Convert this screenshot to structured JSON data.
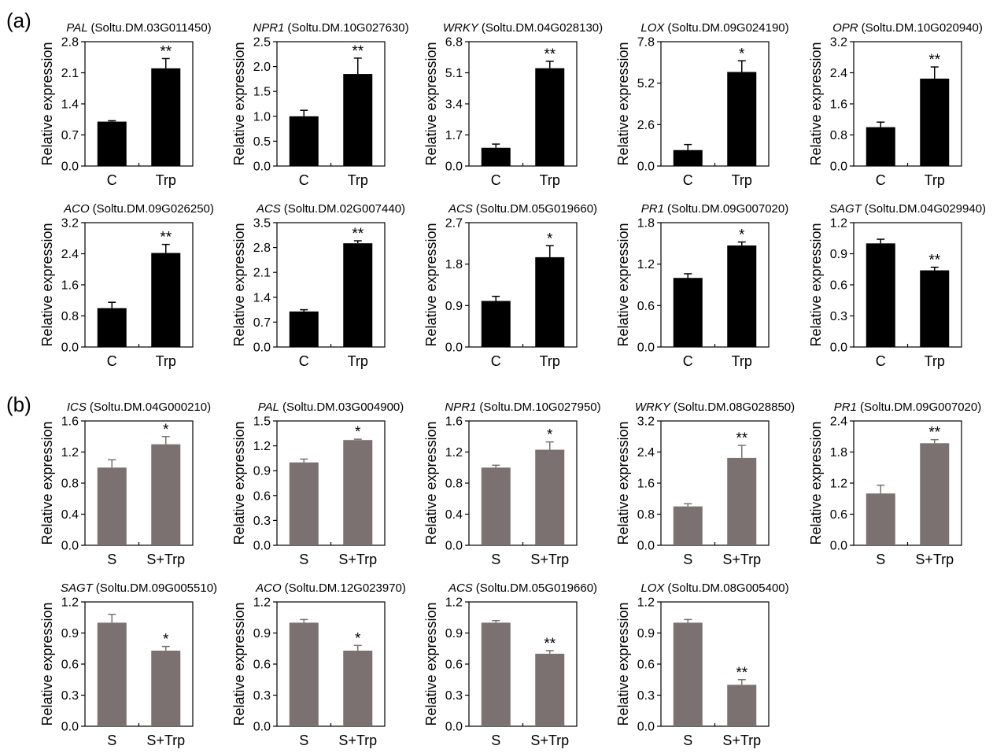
{
  "figure": {
    "panel_labels": [
      "(a)",
      "(b)"
    ],
    "colors": {
      "a": "#000000",
      "b": "#7a7170",
      "axis": "#000000"
    }
  },
  "chart_data": [
    {
      "type": "bar",
      "panel": "(a)",
      "gene": "PAL",
      "gene_id": "(Soltu.DM.03G011450)",
      "title": "PAL (Soltu.DM.03G011450)",
      "ylabel": "Relative expression",
      "categories": [
        "C",
        "Trp"
      ],
      "values": [
        1.0,
        2.2
      ],
      "errors": [
        0.02,
        0.22
      ],
      "significance": [
        "",
        "**"
      ],
      "ylim": [
        0,
        2.8
      ],
      "yticks": [
        "0.0",
        "0.7",
        "1.4",
        "2.1",
        "2.8"
      ]
    },
    {
      "type": "bar",
      "panel": "(a)",
      "gene": "NPR1",
      "gene_id": "(Soltu.DM.10G027630)",
      "title": "NPR1 (Soltu.DM.10G027630)",
      "ylabel": "Relative expression",
      "categories": [
        "C",
        "Trp"
      ],
      "values": [
        1.0,
        1.85
      ],
      "errors": [
        0.12,
        0.32
      ],
      "significance": [
        "",
        "**"
      ],
      "ylim": [
        0,
        2.5
      ],
      "yticks": [
        "0.0",
        "0.5",
        "1.0",
        "1.5",
        "2.0",
        "2.5"
      ]
    },
    {
      "type": "bar",
      "panel": "(a)",
      "gene": "WRKY",
      "gene_id": "(Soltu.DM.04G028130)",
      "title": "WRKY (Soltu.DM.04G028130)",
      "ylabel": "Relative expression",
      "categories": [
        "C",
        "Trp"
      ],
      "values": [
        1.0,
        5.35
      ],
      "errors": [
        0.2,
        0.38
      ],
      "significance": [
        "",
        "**"
      ],
      "ylim": [
        0,
        6.8
      ],
      "yticks": [
        "0.0",
        "1.7",
        "3.4",
        "5.1",
        "6.8"
      ]
    },
    {
      "type": "bar",
      "panel": "(a)",
      "gene": "LOX",
      "gene_id": "(Soltu.DM.09G024190)",
      "title": "LOX (Soltu.DM.09G024190)",
      "ylabel": "Relative expression",
      "categories": [
        "C",
        "Trp"
      ],
      "values": [
        1.0,
        5.9
      ],
      "errors": [
        0.35,
        0.7
      ],
      "significance": [
        "",
        "*"
      ],
      "ylim": [
        0,
        7.8
      ],
      "yticks": [
        "0.0",
        "2.6",
        "5.2",
        "7.8"
      ]
    },
    {
      "type": "bar",
      "panel": "(a)",
      "gene": "OPR",
      "gene_id": "(Soltu.DM.10G020940)",
      "title": "OPR (Soltu.DM.10G020940)",
      "ylabel": "Relative expression",
      "categories": [
        "C",
        "Trp"
      ],
      "values": [
        1.0,
        2.25
      ],
      "errors": [
        0.13,
        0.3
      ],
      "significance": [
        "",
        "**"
      ],
      "ylim": [
        0,
        3.2
      ],
      "yticks": [
        "0.0",
        "0.8",
        "1.6",
        "2.4",
        "3.2"
      ]
    },
    {
      "type": "bar",
      "panel": "(a)",
      "gene": "ACO",
      "gene_id": "(Soltu.DM.09G026250)",
      "title": "ACO (Soltu.DM.09G026250)",
      "ylabel": "Relative expression",
      "categories": [
        "C",
        "Trp"
      ],
      "values": [
        1.0,
        2.42
      ],
      "errors": [
        0.15,
        0.22
      ],
      "significance": [
        "",
        "**"
      ],
      "ylim": [
        0,
        3.2
      ],
      "yticks": [
        "0.0",
        "0.8",
        "1.6",
        "2.4",
        "3.2"
      ]
    },
    {
      "type": "bar",
      "panel": "(a)",
      "gene": "ACS",
      "gene_id": "(Soltu.DM.02G007440)",
      "title": "ACS (Soltu.DM.02G007440)",
      "ylabel": "Relative expression",
      "categories": [
        "C",
        "Trp"
      ],
      "values": [
        1.0,
        2.92
      ],
      "errors": [
        0.05,
        0.07
      ],
      "significance": [
        "",
        "**"
      ],
      "ylim": [
        0,
        3.5
      ],
      "yticks": [
        "0.0",
        "0.7",
        "1.4",
        "2.1",
        "2.8",
        "3.5"
      ]
    },
    {
      "type": "bar",
      "panel": "(a)",
      "gene": "ACS",
      "gene_id": "(Soltu.DM.05G019660)",
      "title": "ACS (Soltu.DM.05G019660)",
      "ylabel": "Relative expression",
      "categories": [
        "C",
        "Trp"
      ],
      "values": [
        1.0,
        1.95
      ],
      "errors": [
        0.1,
        0.25
      ],
      "significance": [
        "",
        "*"
      ],
      "ylim": [
        0,
        2.7
      ],
      "yticks": [
        "0.0",
        "0.9",
        "1.8",
        "2.7"
      ]
    },
    {
      "type": "bar",
      "panel": "(a)",
      "gene": "PR1",
      "gene_id": "(Soltu.DM.09G007020)",
      "title": "PR1 (Soltu.DM.09G007020)",
      "ylabel": "Relative expression",
      "categories": [
        "C",
        "Trp"
      ],
      "values": [
        1.0,
        1.47
      ],
      "errors": [
        0.06,
        0.05
      ],
      "significance": [
        "",
        "*"
      ],
      "ylim": [
        0,
        1.8
      ],
      "yticks": [
        "0.0",
        "0.6",
        "1.2",
        "1.8"
      ]
    },
    {
      "type": "bar",
      "panel": "(a)",
      "gene": "SAGT",
      "gene_id": "(Soltu.DM.04G029940)",
      "title": "SAGT (Soltu.DM.04G029940)",
      "ylabel": "Relative expression",
      "categories": [
        "C",
        "Trp"
      ],
      "values": [
        1.0,
        0.74
      ],
      "errors": [
        0.04,
        0.03
      ],
      "significance": [
        "",
        "**"
      ],
      "ylim": [
        0,
        1.2
      ],
      "yticks": [
        "0.0",
        "0.3",
        "0.6",
        "0.9",
        "1.2"
      ]
    },
    {
      "type": "bar",
      "panel": "(b)",
      "gene": "ICS",
      "gene_id": "(Soltu.DM.04G000210)",
      "title": "ICS (Soltu.DM.04G000210)",
      "ylabel": "Relative expression",
      "categories": [
        "S",
        "S+Trp"
      ],
      "values": [
        1.0,
        1.3
      ],
      "errors": [
        0.1,
        0.1
      ],
      "significance": [
        "",
        "*"
      ],
      "ylim": [
        0,
        1.6
      ],
      "yticks": [
        "0.0",
        "0.4",
        "0.8",
        "1.2",
        "1.6"
      ]
    },
    {
      "type": "bar",
      "panel": "(b)",
      "gene": "PAL",
      "gene_id": "(Soltu.DM.03G004900)",
      "title": "PAL (Soltu.DM.03G004900)",
      "ylabel": "Relative expression",
      "categories": [
        "S",
        "S+Trp"
      ],
      "values": [
        1.0,
        1.27
      ],
      "errors": [
        0.04,
        0.01
      ],
      "significance": [
        "",
        "*"
      ],
      "ylim": [
        0,
        1.5
      ],
      "yticks": [
        "0.0",
        "0.3",
        "0.6",
        "0.9",
        "1.2",
        "1.5"
      ]
    },
    {
      "type": "bar",
      "panel": "(b)",
      "gene": "NPR1",
      "gene_id": "(Soltu.DM.10G027950)",
      "title": "NPR1 (Soltu.DM.10G027950)",
      "ylabel": "Relative expression",
      "categories": [
        "S",
        "S+Trp"
      ],
      "values": [
        1.0,
        1.23
      ],
      "errors": [
        0.03,
        0.1
      ],
      "significance": [
        "",
        "*"
      ],
      "ylim": [
        0,
        1.6
      ],
      "yticks": [
        "0.0",
        "0.4",
        "0.8",
        "1.2",
        "1.6"
      ]
    },
    {
      "type": "bar",
      "panel": "(b)",
      "gene": "WRKY",
      "gene_id": "(Soltu.DM.08G028850)",
      "title": "WRKY (Soltu.DM.08G028850)",
      "ylabel": "Relative expression",
      "categories": [
        "S",
        "S+Trp"
      ],
      "values": [
        1.0,
        2.25
      ],
      "errors": [
        0.07,
        0.32
      ],
      "significance": [
        "",
        "**"
      ],
      "ylim": [
        0,
        3.2
      ],
      "yticks": [
        "0.0",
        "0.8",
        "1.6",
        "2.4",
        "3.2"
      ]
    },
    {
      "type": "bar",
      "panel": "(b)",
      "gene": "PR1",
      "gene_id": "(Soltu.DM.09G007020)",
      "title": "PR1 (Soltu.DM.09G007020)",
      "ylabel": "Relative expression",
      "categories": [
        "S",
        "S+Trp"
      ],
      "values": [
        1.0,
        1.97
      ],
      "errors": [
        0.16,
        0.07
      ],
      "significance": [
        "",
        "**"
      ],
      "ylim": [
        0,
        2.4
      ],
      "yticks": [
        "0.0",
        "0.6",
        "1.2",
        "1.8",
        "2.4"
      ]
    },
    {
      "type": "bar",
      "panel": "(b)",
      "gene": "SAGT",
      "gene_id": "(Soltu.DM.09G005510)",
      "title": "SAGT (Soltu.DM.09G005510)",
      "ylabel": "Relative expression",
      "categories": [
        "S",
        "S+Trp"
      ],
      "values": [
        1.0,
        0.73
      ],
      "errors": [
        0.08,
        0.04
      ],
      "significance": [
        "",
        "*"
      ],
      "ylim": [
        0,
        1.2
      ],
      "yticks": [
        "0.0",
        "0.3",
        "0.6",
        "0.9",
        "1.2"
      ]
    },
    {
      "type": "bar",
      "panel": "(b)",
      "gene": "ACO",
      "gene_id": "(Soltu.DM.12G023970)",
      "title": "ACO (Soltu.DM.12G023970)",
      "ylabel": "Relative expression",
      "categories": [
        "S",
        "S+Trp"
      ],
      "values": [
        1.0,
        0.73
      ],
      "errors": [
        0.03,
        0.05
      ],
      "significance": [
        "",
        "*"
      ],
      "ylim": [
        0,
        1.2
      ],
      "yticks": [
        "0.0",
        "0.3",
        "0.6",
        "0.9",
        "1.2"
      ]
    },
    {
      "type": "bar",
      "panel": "(b)",
      "gene": "ACS",
      "gene_id": "(Soltu.DM.05G019660)",
      "title": "ACS (Soltu.DM.05G019660)",
      "ylabel": "Relative expression",
      "categories": [
        "S",
        "S+Trp"
      ],
      "values": [
        1.0,
        0.7
      ],
      "errors": [
        0.02,
        0.03
      ],
      "significance": [
        "",
        "**"
      ],
      "ylim": [
        0,
        1.2
      ],
      "yticks": [
        "0.0",
        "0.3",
        "0.6",
        "0.9",
        "1.2"
      ]
    },
    {
      "type": "bar",
      "panel": "(b)",
      "gene": "LOX",
      "gene_id": "(Soltu.DM.08G005400)",
      "title": "LOX (Soltu.DM.08G005400)",
      "ylabel": "Relative expression",
      "categories": [
        "S",
        "S+Trp"
      ],
      "values": [
        1.0,
        0.4
      ],
      "errors": [
        0.03,
        0.05
      ],
      "significance": [
        "",
        "**"
      ],
      "ylim": [
        0,
        1.2
      ],
      "yticks": [
        "0.0",
        "0.3",
        "0.6",
        "0.9",
        "1.2"
      ]
    }
  ]
}
